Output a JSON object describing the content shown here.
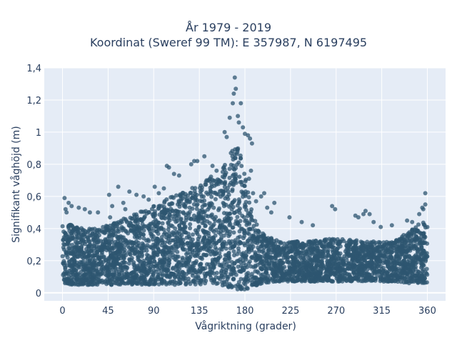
{
  "chart_data": {
    "type": "scatter",
    "title_lines": [
      "År 1979 - 2019",
      "Koordinat (Sweref 99 TM): E 357987, N 6197495"
    ],
    "xlabel": "Vågriktning (grader)",
    "ylabel": "Signifikant våghöjd (m)",
    "xlim": [
      -18,
      378
    ],
    "ylim": [
      -0.05,
      1.4
    ],
    "xticks": [
      0,
      45,
      90,
      135,
      180,
      225,
      270,
      315,
      360
    ],
    "xtick_labels": [
      "0",
      "45",
      "90",
      "135",
      "180",
      "225",
      "270",
      "315",
      "360"
    ],
    "yticks": [
      0,
      0.2,
      0.4,
      0.6,
      0.8,
      1.0,
      1.2,
      1.4
    ],
    "ytick_labels": [
      "0",
      "0,2",
      "0,4",
      "0,6",
      "0,8",
      "1",
      "1,2",
      "1,4"
    ],
    "grid": true,
    "marker_color": "#2e5570",
    "plot_bg": "#e5ecf6",
    "envelope": {
      "direction": [
        0,
        10,
        20,
        30,
        45,
        60,
        75,
        90,
        100,
        110,
        120,
        130,
        140,
        150,
        160,
        165,
        170,
        175,
        180,
        185,
        190,
        195,
        200,
        210,
        225,
        240,
        255,
        270,
        285,
        300,
        315,
        330,
        340,
        350,
        360
      ],
      "height_upper": [
        0.44,
        0.42,
        0.4,
        0.4,
        0.42,
        0.46,
        0.5,
        0.54,
        0.58,
        0.62,
        0.64,
        0.67,
        0.7,
        0.74,
        0.8,
        0.86,
        0.93,
        0.88,
        0.74,
        0.58,
        0.46,
        0.4,
        0.36,
        0.33,
        0.32,
        0.32,
        0.33,
        0.34,
        0.33,
        0.32,
        0.32,
        0.34,
        0.37,
        0.42,
        0.46
      ],
      "height_lower": [
        0.06,
        0.05,
        0.05,
        0.05,
        0.05,
        0.05,
        0.05,
        0.05,
        0.05,
        0.05,
        0.05,
        0.05,
        0.05,
        0.05,
        0.04,
        0.03,
        0.02,
        0.02,
        0.02,
        0.03,
        0.04,
        0.05,
        0.06,
        0.07,
        0.07,
        0.07,
        0.07,
        0.07,
        0.07,
        0.07,
        0.07,
        0.07,
        0.06,
        0.06,
        0.06
      ]
    },
    "outliers": [
      {
        "x": 170,
        "y": 1.34
      },
      {
        "x": 171,
        "y": 1.27
      },
      {
        "x": 169,
        "y": 1.24
      },
      {
        "x": 168,
        "y": 1.18
      },
      {
        "x": 176,
        "y": 1.18
      },
      {
        "x": 165,
        "y": 1.09
      },
      {
        "x": 173,
        "y": 1.1
      },
      {
        "x": 174,
        "y": 1.06
      },
      {
        "x": 178,
        "y": 1.03
      },
      {
        "x": 180,
        "y": 0.99
      },
      {
        "x": 183,
        "y": 0.98
      },
      {
        "x": 185,
        "y": 0.96
      },
      {
        "x": 187,
        "y": 0.93
      },
      {
        "x": 160,
        "y": 1.0
      },
      {
        "x": 162,
        "y": 0.97
      },
      {
        "x": 140,
        "y": 0.85
      },
      {
        "x": 133,
        "y": 0.82
      },
      {
        "x": 130,
        "y": 0.82
      },
      {
        "x": 127,
        "y": 0.8
      },
      {
        "x": 103,
        "y": 0.79
      },
      {
        "x": 105,
        "y": 0.78
      },
      {
        "x": 110,
        "y": 0.74
      },
      {
        "x": 115,
        "y": 0.73
      },
      {
        "x": 148,
        "y": 0.79
      },
      {
        "x": 152,
        "y": 0.76
      },
      {
        "x": 186,
        "y": 0.76
      },
      {
        "x": 184,
        "y": 0.71
      },
      {
        "x": 188,
        "y": 0.62
      },
      {
        "x": 199,
        "y": 0.62
      },
      {
        "x": 196,
        "y": 0.6
      },
      {
        "x": 191,
        "y": 0.57
      },
      {
        "x": 209,
        "y": 0.56
      },
      {
        "x": 202,
        "y": 0.53
      },
      {
        "x": 206,
        "y": 0.5
      },
      {
        "x": 224,
        "y": 0.47
      },
      {
        "x": 236,
        "y": 0.44
      },
      {
        "x": 247,
        "y": 0.42
      },
      {
        "x": 266,
        "y": 0.54
      },
      {
        "x": 269,
        "y": 0.52
      },
      {
        "x": 289,
        "y": 0.48
      },
      {
        "x": 292,
        "y": 0.47
      },
      {
        "x": 297,
        "y": 0.49
      },
      {
        "x": 299,
        "y": 0.51
      },
      {
        "x": 303,
        "y": 0.49
      },
      {
        "x": 307,
        "y": 0.44
      },
      {
        "x": 314,
        "y": 0.41
      },
      {
        "x": 325,
        "y": 0.42
      },
      {
        "x": 340,
        "y": 0.45
      },
      {
        "x": 345,
        "y": 0.44
      },
      {
        "x": 352,
        "y": 0.49
      },
      {
        "x": 356,
        "y": 0.52
      },
      {
        "x": 358,
        "y": 0.55
      },
      {
        "x": 358,
        "y": 0.62
      },
      {
        "x": 355,
        "y": 0.53
      },
      {
        "x": 2,
        "y": 0.59
      },
      {
        "x": 3,
        "y": 0.52
      },
      {
        "x": 6,
        "y": 0.56
      },
      {
        "x": 9,
        "y": 0.54
      },
      {
        "x": 4,
        "y": 0.5
      },
      {
        "x": 16,
        "y": 0.53
      },
      {
        "x": 22,
        "y": 0.52
      },
      {
        "x": 27,
        "y": 0.5
      },
      {
        "x": 35,
        "y": 0.5
      },
      {
        "x": 46,
        "y": 0.61
      },
      {
        "x": 49,
        "y": 0.54
      },
      {
        "x": 55,
        "y": 0.66
      },
      {
        "x": 60,
        "y": 0.56
      },
      {
        "x": 66,
        "y": 0.63
      },
      {
        "x": 73,
        "y": 0.61
      },
      {
        "x": 80,
        "y": 0.6
      },
      {
        "x": 85,
        "y": 0.58
      },
      {
        "x": 91,
        "y": 0.66
      },
      {
        "x": 95,
        "y": 0.62
      },
      {
        "x": 100,
        "y": 0.65
      },
      {
        "x": 47,
        "y": 0.47
      },
      {
        "x": 62,
        "y": 0.52
      }
    ]
  }
}
